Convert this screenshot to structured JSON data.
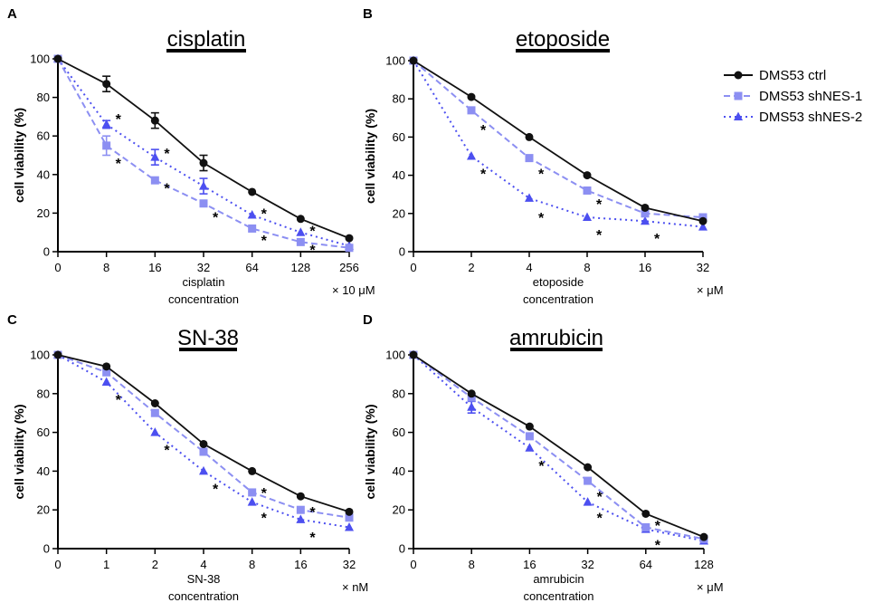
{
  "legend": [
    {
      "name": "DMS53 ctrl",
      "color": "#111111",
      "marker": "circle",
      "dash": "solid"
    },
    {
      "name": "DMS53 shNES-1",
      "color": "#8c8ff2",
      "marker": "square",
      "dash": "dashed"
    },
    {
      "name": "DMS53 shNES-2",
      "color": "#4c4ff0",
      "marker": "triangle",
      "dash": "dotted"
    }
  ],
  "chart_data": [
    {
      "type": "line",
      "panel": "A",
      "title": "cisplatin",
      "ylabel": "cell viability (%)",
      "xlabel": [
        "cisplatin",
        "concentration"
      ],
      "unit": "× 10 μM",
      "categories": [
        "0",
        "8",
        "16",
        "32",
        "64",
        "128",
        "256"
      ],
      "ylim": [
        0,
        100
      ],
      "yticks": [
        0,
        20,
        40,
        60,
        80,
        100
      ],
      "series": [
        {
          "name": "DMS53 ctrl",
          "values": [
            100,
            87,
            68,
            46,
            31,
            17,
            7
          ],
          "errors": [
            0,
            4,
            4,
            4,
            1,
            1,
            1
          ]
        },
        {
          "name": "DMS53 shNES-1",
          "values": [
            100,
            55,
            37,
            25,
            12,
            5,
            2
          ],
          "errors": [
            0,
            5,
            1,
            1,
            1,
            1,
            1
          ]
        },
        {
          "name": "DMS53 shNES-2",
          "values": [
            100,
            66,
            49,
            34,
            19,
            10,
            3
          ],
          "errors": [
            0,
            2,
            4,
            4,
            1,
            1,
            1
          ]
        }
      ],
      "annotations": [
        {
          "text": "*",
          "x": 1,
          "y": 70
        },
        {
          "text": "*",
          "x": 1,
          "y": 47
        },
        {
          "text": "*",
          "x": 2,
          "y": 52
        },
        {
          "text": "*",
          "x": 2,
          "y": 34
        },
        {
          "text": "*",
          "x": 3,
          "y": 19
        },
        {
          "text": "*",
          "x": 4,
          "y": 21
        },
        {
          "text": "*",
          "x": 4,
          "y": 7
        },
        {
          "text": "*",
          "x": 5,
          "y": 12
        },
        {
          "text": "*",
          "x": 5,
          "y": 2
        }
      ]
    },
    {
      "type": "line",
      "panel": "B",
      "title": "etoposide",
      "ylabel": "cell viability (%)",
      "xlabel": [
        "etoposide",
        "concentration"
      ],
      "unit": "× μM",
      "categories": [
        "0",
        "2",
        "4",
        "8",
        "16",
        "32"
      ],
      "ylim": [
        0,
        100
      ],
      "yticks": [
        0,
        20,
        40,
        60,
        80,
        100
      ],
      "series": [
        {
          "name": "DMS53 ctrl",
          "values": [
            100,
            81,
            60,
            40,
            23,
            16
          ],
          "errors": [
            0,
            1,
            1,
            1,
            1,
            1
          ]
        },
        {
          "name": "DMS53 shNES-1",
          "values": [
            100,
            74,
            49,
            32,
            20,
            18
          ],
          "errors": [
            0,
            1,
            1,
            1,
            1,
            1
          ]
        },
        {
          "name": "DMS53 shNES-2",
          "values": [
            100,
            50,
            28,
            18,
            16,
            13
          ],
          "errors": [
            0,
            1,
            1,
            1,
            1,
            1
          ]
        }
      ],
      "annotations": [
        {
          "text": "*",
          "x": 1,
          "y": 65
        },
        {
          "text": "*",
          "x": 1,
          "y": 42
        },
        {
          "text": "*",
          "x": 2,
          "y": 42
        },
        {
          "text": "*",
          "x": 2,
          "y": 19
        },
        {
          "text": "*",
          "x": 3,
          "y": 26
        },
        {
          "text": "*",
          "x": 3,
          "y": 10
        },
        {
          "text": "*",
          "x": 4,
          "y": 8
        }
      ]
    },
    {
      "type": "line",
      "panel": "C",
      "title": "SN-38",
      "ylabel": "cell viability (%)",
      "xlabel": [
        "SN-38",
        "concentration"
      ],
      "unit": "× nM",
      "categories": [
        "0",
        "1",
        "2",
        "4",
        "8",
        "16",
        "32"
      ],
      "ylim": [
        0,
        100
      ],
      "yticks": [
        0,
        20,
        40,
        60,
        80,
        100
      ],
      "series": [
        {
          "name": "DMS53 ctrl",
          "values": [
            100,
            94,
            75,
            54,
            40,
            27,
            19
          ],
          "errors": [
            0,
            1,
            1,
            1,
            1,
            1,
            1
          ]
        },
        {
          "name": "DMS53 shNES-1",
          "values": [
            100,
            91,
            70,
            50,
            29,
            20,
            16
          ],
          "errors": [
            0,
            1,
            1,
            1,
            1,
            1,
            1
          ]
        },
        {
          "name": "DMS53 shNES-2",
          "values": [
            100,
            86,
            60,
            40,
            24,
            15,
            11
          ],
          "errors": [
            0,
            1,
            1,
            1,
            1,
            1,
            1
          ]
        }
      ],
      "annotations": [
        {
          "text": "*",
          "x": 1,
          "y": 78
        },
        {
          "text": "*",
          "x": 2,
          "y": 52
        },
        {
          "text": "*",
          "x": 3,
          "y": 32
        },
        {
          "text": "*",
          "x": 4,
          "y": 30
        },
        {
          "text": "*",
          "x": 4,
          "y": 17
        },
        {
          "text": "*",
          "x": 5,
          "y": 20
        },
        {
          "text": "*",
          "x": 5,
          "y": 7
        }
      ]
    },
    {
      "type": "line",
      "panel": "D",
      "title": "amrubicin",
      "ylabel": "cell viability (%)",
      "xlabel": [
        "amrubicin",
        "concentration"
      ],
      "unit": "× μM",
      "categories": [
        "0",
        "8",
        "16",
        "32",
        "64",
        "128"
      ],
      "ylim": [
        0,
        100
      ],
      "yticks": [
        0,
        20,
        40,
        60,
        80,
        100
      ],
      "series": [
        {
          "name": "DMS53 ctrl",
          "values": [
            100,
            80,
            63,
            42,
            18,
            6
          ],
          "errors": [
            0,
            1,
            1,
            1,
            1,
            1
          ]
        },
        {
          "name": "DMS53 shNES-1",
          "values": [
            100,
            78,
            58,
            35,
            11,
            5
          ],
          "errors": [
            0,
            1,
            1,
            1,
            1,
            1
          ]
        },
        {
          "name": "DMS53 shNES-2",
          "values": [
            100,
            73,
            52,
            24,
            10,
            4
          ],
          "errors": [
            0,
            3,
            1,
            1,
            1,
            1
          ]
        }
      ],
      "annotations": [
        {
          "text": "*",
          "x": 2,
          "y": 44
        },
        {
          "text": "*",
          "x": 3,
          "y": 28
        },
        {
          "text": "*",
          "x": 3,
          "y": 17
        },
        {
          "text": "*",
          "x": 4,
          "y": 13
        },
        {
          "text": "*",
          "x": 4,
          "y": 3
        }
      ]
    }
  ]
}
